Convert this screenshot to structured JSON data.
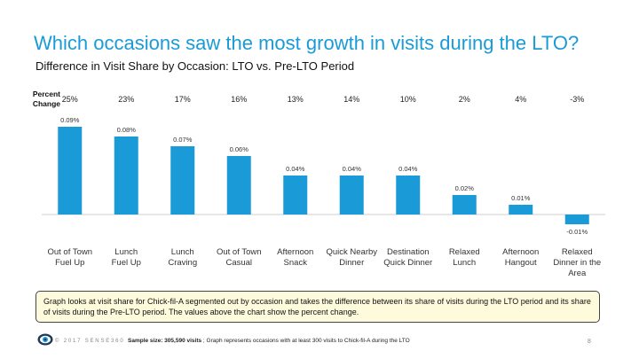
{
  "slide": {
    "title": "Which occasions saw the most growth in visits during the LTO?",
    "percent_change_label": "Percent Change",
    "note": "Graph looks at visit share for Chick-fil-A segmented out by occasion and takes the difference between its share of visits during the LTO period and its share of visits during the Pre-LTO period.  The values above the chart show the percent change.",
    "footer": {
      "copyright": "© 2017 SENSE360",
      "sample_label": "Sample size: 305,590 visits",
      "sample_rest": " ; Graph represents occasions with at least 300 visits to Chick-fil-A during the LTO",
      "page_number": "8"
    },
    "colors": {
      "title": "#1a9bd7",
      "bar": "#1a9bd7",
      "note_bg": "#fefbdc"
    }
  },
  "chart_data": {
    "type": "bar",
    "title": "Difference in Visit Share by Occasion: LTO vs. Pre-LTO Period",
    "categories": [
      [
        "Out of Town",
        "Fuel Up"
      ],
      [
        "Lunch",
        "Fuel Up"
      ],
      [
        "Lunch",
        "Craving"
      ],
      [
        "Out of Town",
        "Casual"
      ],
      [
        "Afternoon",
        "Snack"
      ],
      [
        "Quick Nearby",
        "Dinner"
      ],
      [
        "Destination",
        "Quick Dinner"
      ],
      [
        "Relaxed",
        "Lunch"
      ],
      [
        "Afternoon",
        "Hangout"
      ],
      [
        "Relaxed",
        "Dinner in the",
        "Area"
      ]
    ],
    "values": [
      0.09,
      0.08,
      0.07,
      0.06,
      0.04,
      0.04,
      0.04,
      0.02,
      0.01,
      -0.01
    ],
    "value_labels": [
      "0.09%",
      "0.08%",
      "0.07%",
      "0.06%",
      "0.04%",
      "0.04%",
      "0.04%",
      "0.02%",
      "0.01%",
      "-0.01%"
    ],
    "percent_change": [
      "25%",
      "23%",
      "17%",
      "16%",
      "13%",
      "14%",
      "10%",
      "2%",
      "4%",
      "-3%"
    ],
    "xlabel": "",
    "ylabel": "",
    "grid": false,
    "legend": "none"
  }
}
